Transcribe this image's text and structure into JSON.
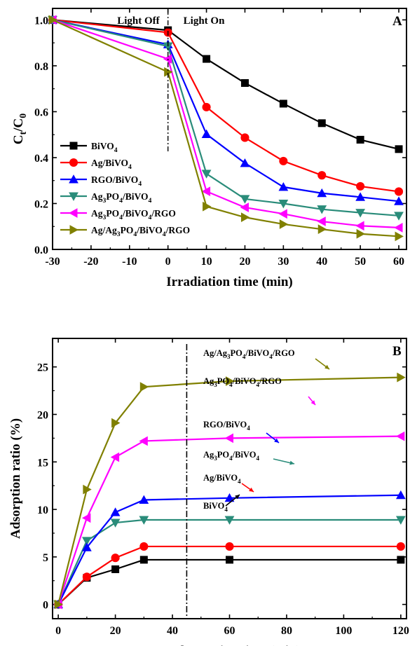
{
  "colors": {
    "BiVO4": "#000000",
    "Ag/BiVO4": "#ff0000",
    "RGO/BiVO4": "#0000ff",
    "Ag3PO4/BiVO4": "#2a8c7a",
    "Ag3PO4/BiVO4/RGO": "#ff00ff",
    "Ag/Ag3PO4/BiVO4/RGO": "#808000"
  },
  "chart_data": [
    {
      "type": "line",
      "panel_label": "A",
      "annotations": {
        "light_off": "Light Off",
        "light_on": "Light On"
      },
      "xlabel": "Irradiation time (min)",
      "ylabel": {
        "main": "C",
        "sub1": "t",
        "slash": "/C",
        "sub2": "0"
      },
      "xlim": [
        -30,
        62
      ],
      "ylim": [
        0,
        1.05
      ],
      "xticks": [
        -30,
        -20,
        -10,
        0,
        10,
        20,
        30,
        40,
        50,
        60
      ],
      "yticks": [
        0.0,
        0.2,
        0.4,
        0.6,
        0.8,
        1.0
      ],
      "x": [
        -30,
        0,
        10,
        20,
        30,
        40,
        50,
        60
      ],
      "legend_position": "bottom-left",
      "series": [
        {
          "key": "BiVO4",
          "marker": "square",
          "legend": [
            {
              "t": "BiVO"
            },
            {
              "t": "4",
              "sub": true
            }
          ],
          "values": [
            1.0,
            0.955,
            0.83,
            0.725,
            0.635,
            0.55,
            0.478,
            0.437
          ]
        },
        {
          "key": "Ag/BiVO4",
          "marker": "circle",
          "legend": [
            {
              "t": "Ag/BiVO"
            },
            {
              "t": "4",
              "sub": true
            }
          ],
          "values": [
            1.0,
            0.945,
            0.62,
            0.487,
            0.385,
            0.323,
            0.275,
            0.252
          ]
        },
        {
          "key": "RGO/BiVO4",
          "marker": "triangle-up",
          "legend": [
            {
              "t": "RGO/BiVO"
            },
            {
              "t": "4",
              "sub": true
            }
          ],
          "values": [
            1.0,
            0.893,
            0.502,
            0.376,
            0.272,
            0.245,
            0.228,
            0.21
          ]
        },
        {
          "key": "Ag3PO4/BiVO4",
          "marker": "triangle-down",
          "legend": [
            {
              "t": "Ag"
            },
            {
              "t": "3",
              "sub": true
            },
            {
              "t": "PO"
            },
            {
              "t": "4",
              "sub": true
            },
            {
              "t": "/BiVO"
            },
            {
              "t": "4",
              "sub": true
            }
          ],
          "values": [
            1.0,
            0.885,
            0.33,
            0.22,
            0.2,
            0.175,
            0.16,
            0.147
          ]
        },
        {
          "key": "Ag3PO4/BiVO4/RGO",
          "marker": "triangle-left",
          "legend": [
            {
              "t": "Ag"
            },
            {
              "t": "3",
              "sub": true
            },
            {
              "t": "PO"
            },
            {
              "t": "4",
              "sub": true
            },
            {
              "t": "/BiVO"
            },
            {
              "t": "4",
              "sub": true
            },
            {
              "t": "/RGO"
            }
          ],
          "values": [
            1.0,
            0.83,
            0.253,
            0.183,
            0.155,
            0.122,
            0.103,
            0.095
          ]
        },
        {
          "key": "Ag/Ag3PO4/BiVO4/RGO",
          "marker": "triangle-right",
          "legend": [
            {
              "t": "Ag/Ag"
            },
            {
              "t": "3",
              "sub": true
            },
            {
              "t": "PO"
            },
            {
              "t": "4",
              "sub": true
            },
            {
              "t": "/BiVO"
            },
            {
              "t": "4",
              "sub": true
            },
            {
              "t": "/RGO"
            }
          ],
          "values": [
            1.0,
            0.773,
            0.187,
            0.14,
            0.11,
            0.088,
            0.068,
            0.057
          ]
        }
      ]
    },
    {
      "type": "line",
      "panel_label": "B",
      "xlabel": "Dark reaction time (min)",
      "ylabel": "Adsorption ratio (%)",
      "xlim": [
        -2,
        122
      ],
      "ylim": [
        -1.5,
        28
      ],
      "xticks": [
        0,
        20,
        40,
        60,
        80,
        100,
        120
      ],
      "yticks": [
        0,
        5,
        10,
        15,
        20,
        25
      ],
      "x": [
        0,
        10,
        20,
        30,
        60,
        120
      ],
      "divider_x": 45,
      "series": [
        {
          "key": "BiVO4",
          "marker": "square",
          "label": [
            {
              "t": "BiVO"
            },
            {
              "t": "4",
              "sub": true
            }
          ],
          "values": [
            0,
            2.8,
            3.7,
            4.7,
            4.7,
            4.7
          ]
        },
        {
          "key": "Ag/BiVO4",
          "marker": "circle",
          "label": [
            {
              "t": "Ag/BiVO"
            },
            {
              "t": "4",
              "sub": true
            }
          ],
          "values": [
            0,
            2.9,
            4.9,
            6.1,
            6.1,
            6.1
          ]
        },
        {
          "key": "Ag3PO4/BiVO4",
          "marker": "triangle-down",
          "label": [
            {
              "t": "Ag"
            },
            {
              "t": "3",
              "sub": true
            },
            {
              "t": "PO"
            },
            {
              "t": "4",
              "sub": true
            },
            {
              "t": "/BiVO"
            },
            {
              "t": "4",
              "sub": true
            }
          ],
          "values": [
            0,
            6.7,
            8.6,
            8.9,
            8.9,
            8.9
          ]
        },
        {
          "key": "RGO/BiVO4",
          "marker": "triangle-up",
          "label": [
            {
              "t": "RGO/BiVO"
            },
            {
              "t": "4",
              "sub": true
            }
          ],
          "values": [
            0,
            6.0,
            9.7,
            11.0,
            11.2,
            11.5
          ]
        },
        {
          "key": "Ag3PO4/BiVO4/RGO",
          "marker": "triangle-left",
          "label": [
            {
              "t": "Ag"
            },
            {
              "t": "3",
              "sub": true
            },
            {
              "t": "PO"
            },
            {
              "t": "4",
              "sub": true
            },
            {
              "t": "/BiVO"
            },
            {
              "t": "4",
              "sub": true
            },
            {
              "t": "/RGO"
            }
          ],
          "values": [
            0,
            9.1,
            15.5,
            17.2,
            17.5,
            17.7
          ]
        },
        {
          "key": "Ag/Ag3PO4/BiVO4/RGO",
          "marker": "triangle-right",
          "label": [
            {
              "t": "Ag/Ag"
            },
            {
              "t": "3",
              "sub": true
            },
            {
              "t": "PO"
            },
            {
              "t": "4",
              "sub": true
            },
            {
              "t": "/BiVO"
            },
            {
              "t": "4",
              "sub": true
            },
            {
              "t": "/RGO"
            }
          ],
          "values": [
            0,
            12.1,
            19.1,
            22.9,
            23.5,
            23.9
          ]
        }
      ]
    }
  ]
}
